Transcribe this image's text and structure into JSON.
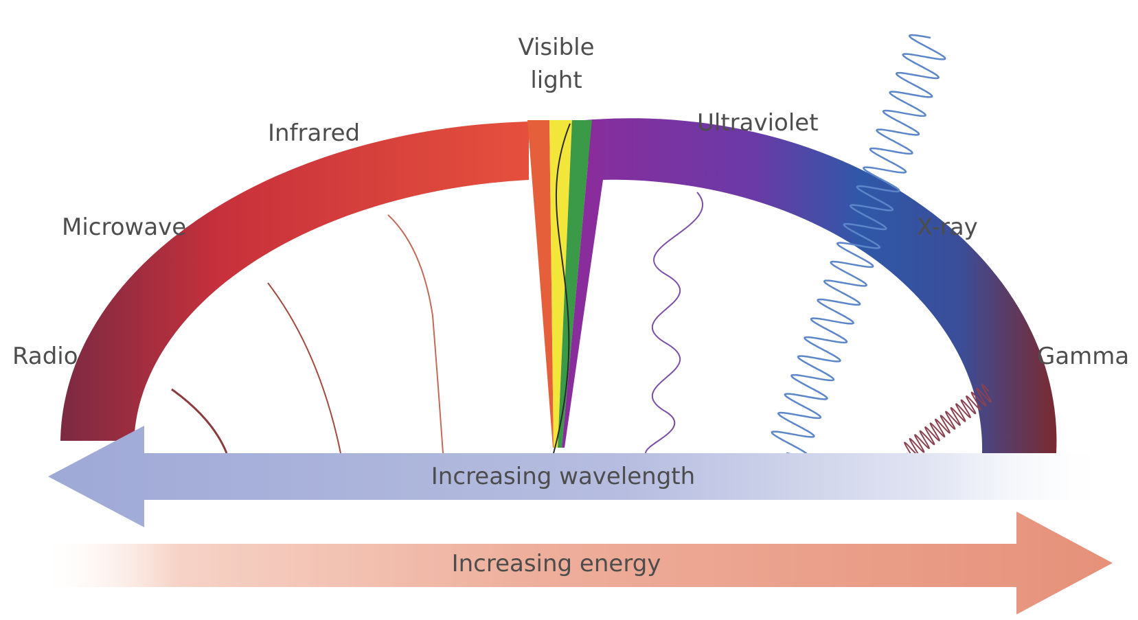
{
  "labels": {
    "radio": "Radio",
    "microwave": "Microwave",
    "infrared": "Infrared",
    "visible_line1": "Visible",
    "visible_line2": "light",
    "ultraviolet": "Ultraviolet",
    "xray": "X-ray",
    "gamma": "Gamma"
  },
  "arrows": {
    "wavelength": "Increasing wavelength",
    "energy": "Increasing energy"
  },
  "colors": {
    "radio": "#8e2a3c",
    "microwave": "#c9323a",
    "infrared": "#e3503e",
    "visible_red": "#e5603a",
    "visible_yellow": "#f3e63a",
    "visible_green": "#3a9a48",
    "ultraviolet": "#8a2d9c",
    "xray": "#2f58a8",
    "gamma": "#7d2a32",
    "wavelength_arrow": "#aab4da",
    "energy_arrow": "#e8957c",
    "label_text": "#4d4d4d"
  }
}
